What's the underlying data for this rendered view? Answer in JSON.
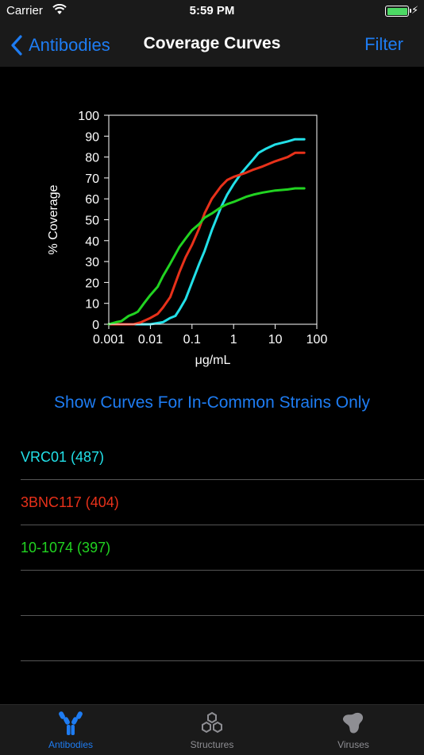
{
  "status_bar": {
    "carrier": "Carrier",
    "time": "5:59 PM"
  },
  "nav": {
    "back_label": "Antibodies",
    "title": "Coverage Curves",
    "filter_label": "Filter"
  },
  "chart_data": {
    "type": "line",
    "xlabel": "μg/mL",
    "ylabel": "% Coverage",
    "x_scale": "log",
    "xlim": [
      0.001,
      100
    ],
    "ylim": [
      0,
      100
    ],
    "x_ticks": [
      "0.001",
      "0.01",
      "0.1",
      "1",
      "10",
      "100"
    ],
    "y_ticks": [
      "0",
      "10",
      "20",
      "30",
      "40",
      "50",
      "60",
      "70",
      "80",
      "90",
      "100"
    ],
    "series": [
      {
        "color": "#22e0e8",
        "points": [
          [
            0.001,
            0
          ],
          [
            0.01,
            0
          ],
          [
            0.02,
            1
          ],
          [
            0.03,
            3
          ],
          [
            0.04,
            4
          ],
          [
            0.05,
            7
          ],
          [
            0.07,
            12
          ],
          [
            0.1,
            20
          ],
          [
            0.15,
            29
          ],
          [
            0.2,
            35
          ],
          [
            0.3,
            45
          ],
          [
            0.5,
            56
          ],
          [
            0.7,
            62
          ],
          [
            1,
            67
          ],
          [
            1.5,
            72
          ],
          [
            2,
            75
          ],
          [
            3,
            79
          ],
          [
            4,
            82
          ],
          [
            6,
            84
          ],
          [
            10,
            86
          ],
          [
            20,
            87.5
          ],
          [
            30,
            88.5
          ],
          [
            50,
            88.5
          ]
        ]
      },
      {
        "color": "#e8311a",
        "points": [
          [
            0.001,
            0
          ],
          [
            0.004,
            0
          ],
          [
            0.006,
            1
          ],
          [
            0.01,
            3
          ],
          [
            0.015,
            5
          ],
          [
            0.02,
            8
          ],
          [
            0.03,
            13
          ],
          [
            0.05,
            25
          ],
          [
            0.07,
            32
          ],
          [
            0.1,
            38
          ],
          [
            0.15,
            46
          ],
          [
            0.2,
            53
          ],
          [
            0.3,
            60
          ],
          [
            0.5,
            66
          ],
          [
            0.7,
            69
          ],
          [
            1,
            70.5
          ],
          [
            2,
            72.5
          ],
          [
            3,
            74
          ],
          [
            5,
            75.5
          ],
          [
            10,
            78
          ],
          [
            20,
            80
          ],
          [
            30,
            82
          ],
          [
            50,
            82
          ]
        ]
      },
      {
        "color": "#21d321",
        "points": [
          [
            0.001,
            0
          ],
          [
            0.0015,
            1
          ],
          [
            0.002,
            1.5
          ],
          [
            0.003,
            4
          ],
          [
            0.004,
            5
          ],
          [
            0.005,
            6
          ],
          [
            0.007,
            10
          ],
          [
            0.01,
            14
          ],
          [
            0.015,
            18
          ],
          [
            0.02,
            23
          ],
          [
            0.03,
            29
          ],
          [
            0.05,
            37
          ],
          [
            0.07,
            41
          ],
          [
            0.1,
            45
          ],
          [
            0.15,
            48
          ],
          [
            0.2,
            51
          ],
          [
            0.3,
            53
          ],
          [
            0.5,
            56
          ],
          [
            0.7,
            57.5
          ],
          [
            1,
            58.5
          ],
          [
            2,
            61
          ],
          [
            3,
            62
          ],
          [
            5,
            63
          ],
          [
            10,
            64
          ],
          [
            20,
            64.5
          ],
          [
            30,
            65
          ],
          [
            50,
            65
          ]
        ]
      }
    ]
  },
  "show_curves_label": "Show Curves For In-Common Strains Only",
  "antibodies": [
    {
      "label": "VRC01 (487)",
      "color": "#22e0e8"
    },
    {
      "label": "3BNC117 (404)",
      "color": "#e8311a"
    },
    {
      "label": "10-1074 (397)",
      "color": "#21d321"
    },
    {
      "label": "",
      "color": "#ffffff"
    },
    {
      "label": "",
      "color": "#ffffff"
    }
  ],
  "tabs": [
    {
      "label": "Antibodies",
      "icon": "antibody-icon",
      "active": true
    },
    {
      "label": "Structures",
      "icon": "structure-icon",
      "active": false
    },
    {
      "label": "Viruses",
      "icon": "virus-icon",
      "active": false
    }
  ]
}
